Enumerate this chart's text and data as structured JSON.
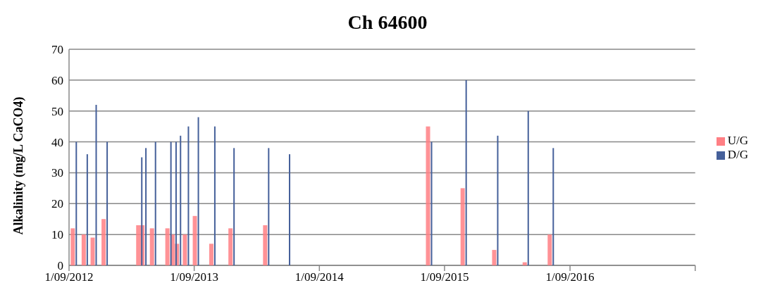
{
  "chart_data": {
    "type": "bar",
    "title": "Ch 64600",
    "ylabel": "Alkalinity (mg/L CaCO4)",
    "x": [
      "2012-09-17",
      "2012-10-19",
      "2012-11-14",
      "2012-12-16",
      "2013-03-27",
      "2013-04-08",
      "2013-05-06",
      "2013-06-20",
      "2013-07-05",
      "2013-07-18",
      "2013-08-10",
      "2013-09-08",
      "2013-10-26",
      "2013-12-21",
      "2014-04-01",
      "2014-06-01",
      "2015-07-20",
      "2015-10-29",
      "2016-01-29",
      "2016-04-27",
      "2016-07-09"
    ],
    "series": [
      {
        "name": "U/G",
        "color": "#ff7f84",
        "values": [
          12,
          10,
          9,
          15,
          13,
          13,
          12,
          12,
          10,
          7,
          10,
          16,
          7,
          12,
          13,
          null,
          45,
          25,
          5,
          1,
          10
        ]
      },
      {
        "name": "D/G",
        "color": "#45609a",
        "values": [
          40,
          36,
          52,
          40,
          35,
          38,
          40,
          40,
          40,
          42,
          45,
          48,
          45,
          38,
          38,
          36,
          40,
          60,
          42,
          50,
          38
        ]
      }
    ],
    "xlim": [
      "2012-09-01",
      "2017-09-01"
    ],
    "xticks": [
      {
        "value": "2012-09-01",
        "label": "1/09/2012"
      },
      {
        "value": "2013-09-01",
        "label": "1/09/2013"
      },
      {
        "value": "2014-09-01",
        "label": "1/09/2014"
      },
      {
        "value": "2015-09-01",
        "label": "1/09/2015"
      },
      {
        "value": "2016-09-01",
        "label": "1/09/2016"
      },
      {
        "value": "2017-09-01",
        "label": null
      }
    ],
    "ylim": [
      0,
      70
    ],
    "yticks": [
      0,
      10,
      20,
      30,
      40,
      50,
      60,
      70
    ],
    "grid": "y",
    "legend": "right"
  }
}
